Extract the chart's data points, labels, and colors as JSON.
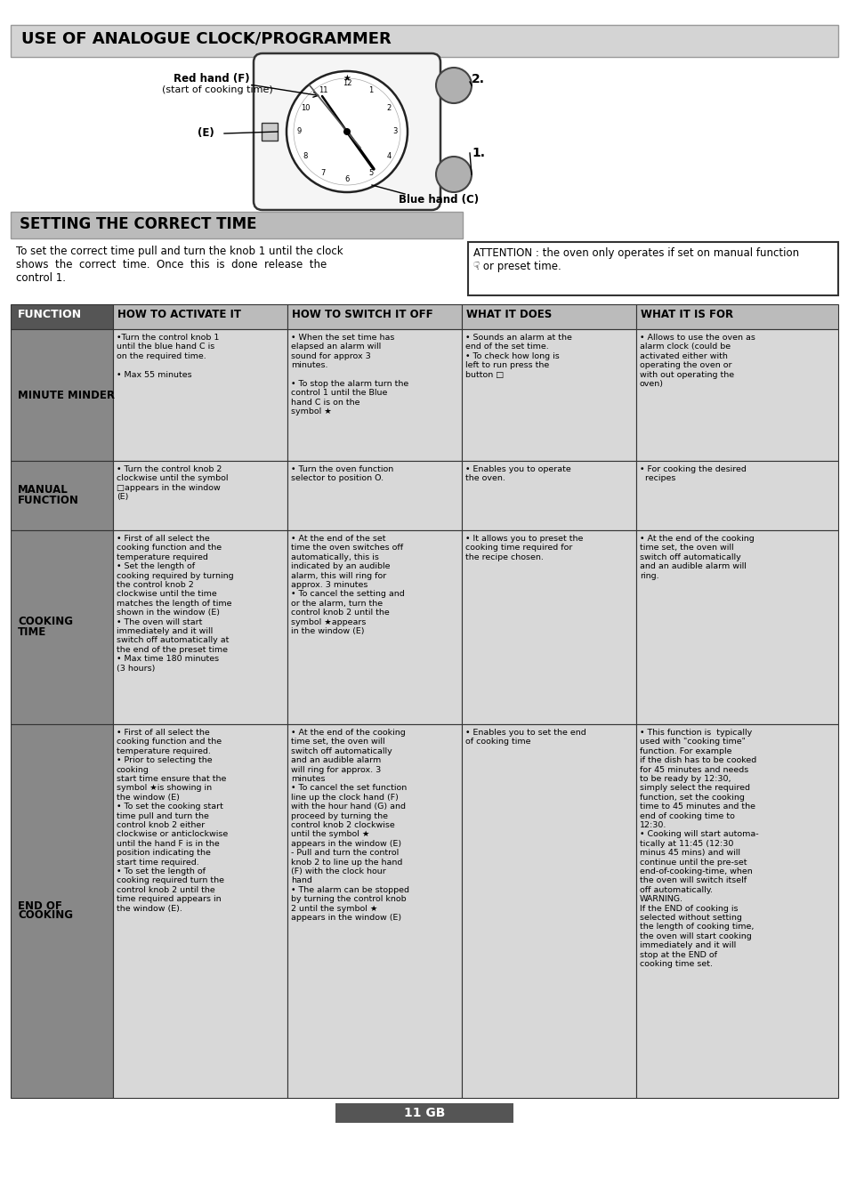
{
  "title": "USE OF ANALOGUE CLOCK/PROGRAMMER",
  "title_bg": "#d4d4d4",
  "section2_title": "SETTING THE CORRECT TIME",
  "section2_bg": "#bbbbbb",
  "page_bg": "#ffffff",
  "left_text": "To set the correct time pull and turn the knob 1 until the clock\nshows  the  correct  time.  Once  this  is  done  release  the\ncontrol 1.",
  "attention_text": "ATTENTION : the oven only operates if set on manual function\n☟ or preset time.",
  "col_headers": [
    "FUNCTION",
    "HOW TO ACTIVATE IT",
    "HOW TO SWITCH IT OFF",
    "WHAT IT DOES",
    "WHAT IT IS FOR"
  ],
  "rows": [
    {
      "function": "MINUTE MINDER",
      "activate": "•Turn the control knob 1\nuntil the blue hand C is\non the required time.\n\n• Max 55 minutes",
      "switch_off": "• When the set time has\nelapsed an alarm will\nsound for approx 3\nminutes.\n\n• To stop the alarm turn the\ncontrol 1 until the Blue\nhand C is on the\nsymbol ★",
      "what_does": "• Sounds an alarm at the\nend of the set time.\n• To check how long is\nleft to run press the\nbutton □",
      "what_for": "• Allows to use the oven as\nalarm clock (could be\nactivated either with\noperating the oven or\nwith out operating the\noven)"
    },
    {
      "function": "MANUAL\nFUNCTION",
      "activate": "• Turn the control knob 2\nclockwise until the symbol\n□appears in the window\n(E)",
      "switch_off": "• Turn the oven function\nselector to position O.",
      "what_does": "• Enables you to operate\nthe oven.",
      "what_for": "• For cooking the desired\n  recipes"
    },
    {
      "function": "COOKING\nTIME",
      "activate": "• First of all select the\ncooking function and the\ntemperature required\n• Set the length of\ncooking required by turning\nthe control knob 2\nclockwise until the time\nmatches the length of time\nshown in the window (E)\n• The oven will start\nimmediately and it will\nswitch off automatically at\nthe end of the preset time\n• Max time 180 minutes\n(3 hours)",
      "switch_off": "• At the end of the set\ntime the oven switches off\nautomatically, this is\nindicated by an audible\nalarm, this will ring for\napprox. 3 minutes\n• To cancel the setting and\nor the alarm, turn the\ncontrol knob 2 until the\nsymbol ★appears\nin the window (E)",
      "what_does": "• It allows you to preset the\ncooking time required for\nthe recipe chosen.",
      "what_for": "• At the end of the cooking\ntime set, the oven will\nswitch off automatically\nand an audible alarm will\nring."
    },
    {
      "function": "END OF\nCOOKING",
      "activate": "• First of all select the\ncooking function and the\ntemperature required.\n• Prior to selecting the\ncooking\nstart time ensure that the\nsymbol ★is showing in\nthe window (E)\n• To set the cooking start\ntime pull and turn the\ncontrol knob 2 either\nclockwise or anticlockwise\nuntil the hand F is in the\nposition indicating the\nstart time required.\n• To set the length of\ncooking required turn the\ncontrol knob 2 until the\ntime required appears in\nthe window (E).",
      "switch_off": "• At the end of the cooking\ntime set, the oven will\nswitch off automatically\nand an audible alarm\nwill ring for approx. 3\nminutes\n• To cancel the set function\nline up the clock hand (F)\nwith the hour hand (G) and\nproceed by turning the\ncontrol knob 2 clockwise\nuntil the symbol ★\nappears in the window (E)\n- Pull and turn the control\nknob 2 to line up the hand\n(F) with the clock hour\nhand\n• The alarm can be stopped\nby turning the control knob\n2 until the symbol ★\nappears in the window (E)",
      "what_does": "• Enables you to set the end\nof cooking time",
      "what_for": "• This function is  typically\nused with \"cooking time\"\nfunction. For example\nif the dish has to be cooked\nfor 45 minutes and needs\nto be ready by 12:30,\nsimply select the required\nfunction, set the cooking\ntime to 45 minutes and the\nend of cooking time to\n12:30.\n• Cooking will start automa-\ntically at 11:45 (12:30\nminus 45 mins) and will\ncontinue until the pre-set\nend-of-cooking-time, when\nthe oven will switch itself\noff automatically.\nWARNING.\nIf the END of cooking is\nselected without setting\nthe length of cooking time,\nthe oven will start cooking\nimmediately and it will\nstop at the END of\ncooking time set."
    }
  ],
  "footer_text": "11 GB"
}
